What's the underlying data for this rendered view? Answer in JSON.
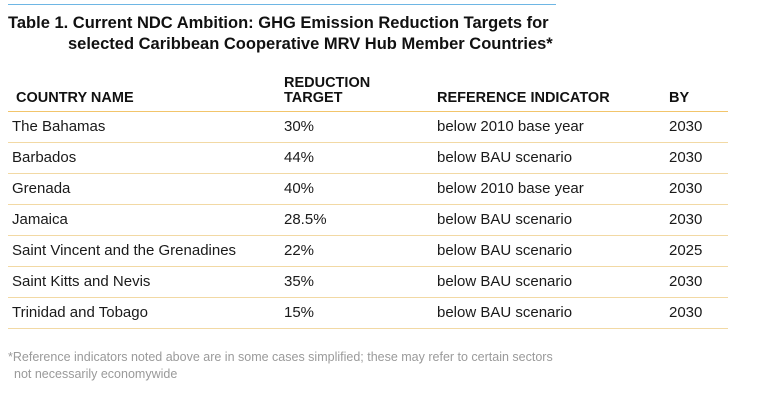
{
  "document": {
    "title_line1": "Table 1. Current NDC Ambition:  GHG Emission Reduction Targets for",
    "title_line2": "selected Caribbean Cooperative MRV Hub Member Countries*",
    "columns": [
      "COUNTRY NAME",
      "REDUCTION TARGET",
      "REFERENCE INDICATOR",
      "BY"
    ],
    "rows": [
      [
        "The Bahamas",
        "30%",
        "below 2010 base year",
        "2030"
      ],
      [
        "Barbados",
        "44%",
        "below BAU scenario",
        "2030"
      ],
      [
        "Grenada",
        "40%",
        "below 2010 base year",
        "2030"
      ],
      [
        "Jamaica",
        "28.5%",
        "below BAU scenario",
        "2030"
      ],
      [
        "Saint Vincent and the Grenadines",
        "22%",
        "below BAU scenario",
        "2025"
      ],
      [
        "Saint Kitts and Nevis",
        "35%",
        "below BAU scenario",
        "2030"
      ],
      [
        "Trinidad and Tobago",
        "15%",
        "below BAU scenario",
        "2030"
      ]
    ],
    "footnote_line1": "*Reference indicators noted above are in some cases simplified; these may refer to certain sectors",
    "footnote_line2": "not necessarily economywide"
  },
  "colors": {
    "title_rule": "#6eb6e4",
    "header_rule": "#f2c56b",
    "row_rule": "#f2d9a4",
    "footnote_text": "#9a9a9a"
  }
}
